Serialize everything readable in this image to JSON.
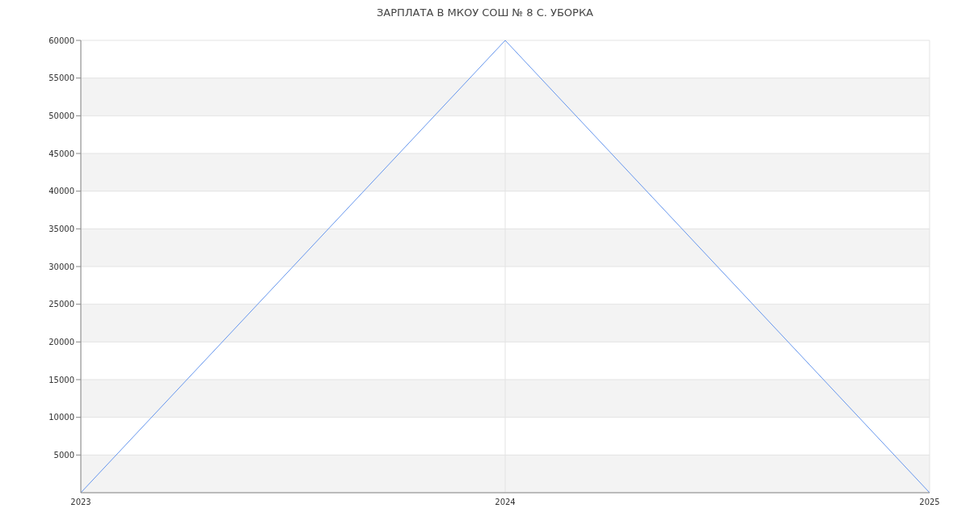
{
  "chart_data": {
    "type": "line",
    "title": "ЗАРПЛАТА В МКОУ СОШ № 8 С. УБОРКА",
    "x": [
      2023,
      2024,
      2025
    ],
    "series": [
      {
        "color": "#6495ed",
        "values": [
          0,
          60000,
          0
        ]
      }
    ],
    "xlim": [
      2023,
      2025
    ],
    "xticks": [
      2023,
      2024,
      2025
    ],
    "ylim": [
      0,
      60000
    ],
    "yticks": [
      5000,
      10000,
      15000,
      20000,
      25000,
      30000,
      35000,
      40000,
      45000,
      50000,
      55000,
      60000
    ],
    "grid": true
  }
}
